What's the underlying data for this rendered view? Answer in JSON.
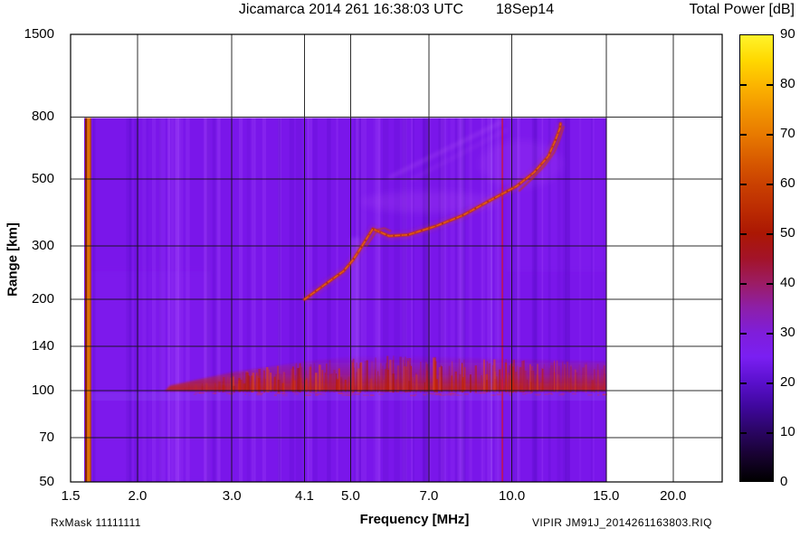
{
  "header": {
    "title": "Jicamarca 2014 261 16:38:03 UTC",
    "date": "18Sep14"
  },
  "footer": {
    "rx_mask": "RxMask 11111111",
    "file_id": "VIPIR  JM91J_2014261163803.RIQ"
  },
  "colors": {
    "background": "#7a16ea",
    "background_light": "#b45bff",
    "background_dark": "#4a07b5",
    "trace": "#c83708",
    "trace_core": "#ef6a12",
    "e_band": "#c42203",
    "calibration_stripe": "#de7502",
    "rfi_line": "#d11535",
    "grid": "#111111"
  },
  "chart_data": {
    "type": "heatmap",
    "title": "Jicamarca 2014 261 16:38:03 UTC  18Sep14",
    "xlabel": "Frequency [MHz]",
    "ylabel": "Range [km]",
    "colorbar_label": "Total Power [dB]",
    "x_scale": "log",
    "y_scale": "log",
    "grid": true,
    "x_ticks": [
      "1.5",
      "2.0",
      "3.0",
      "4.1",
      "5.0",
      "7.0",
      "10.0",
      "15.0",
      "20.0"
    ],
    "x_tick_values": [
      1.5,
      2.0,
      3.0,
      4.1,
      5.0,
      7.0,
      10.0,
      15.0,
      20.0
    ],
    "y_ticks": [
      50,
      70,
      100,
      140,
      200,
      300,
      500,
      800,
      1500
    ],
    "x_axis_range": [
      1.5,
      24.7
    ],
    "y_axis_range": [
      50,
      1500
    ],
    "colorbar": {
      "min": 0,
      "max": 90,
      "tick_step": 10,
      "labels": [
        0,
        10,
        20,
        30,
        40,
        50,
        60,
        70,
        80,
        90
      ],
      "stops": [
        [
          0,
          "#000000"
        ],
        [
          5,
          "#17022f"
        ],
        [
          10,
          "#2a0563"
        ],
        [
          15,
          "#3f079d"
        ],
        [
          20,
          "#5a10cd"
        ],
        [
          25,
          "#7a1ff2"
        ],
        [
          30,
          "#7f1eda"
        ],
        [
          35,
          "#8d1fa8"
        ],
        [
          40,
          "#9c1c64"
        ],
        [
          45,
          "#a31328"
        ],
        [
          50,
          "#ab1703"
        ],
        [
          55,
          "#bc2c02"
        ],
        [
          60,
          "#ca4101"
        ],
        [
          65,
          "#d95c00"
        ],
        [
          70,
          "#e87a00"
        ],
        [
          75,
          "#f29500"
        ],
        [
          80,
          "#fcb500"
        ],
        [
          85,
          "#ffd800"
        ],
        [
          90,
          "#fff32b"
        ]
      ]
    },
    "data_region": {
      "f_min": 1.59,
      "f_max": 15.05,
      "r_min": 50,
      "r_max": 795,
      "background_db": 25
    },
    "features": {
      "calibration_stripe_mhz": 1.61,
      "rfi_line_mhz": 9.6,
      "critical_frequency_mhz": 12.3,
      "e_region_band": {
        "f_start": 2.25,
        "f_end": 15.0,
        "r_bottom": 100,
        "peak_db": 47,
        "top_profile": [
          [
            2.3,
            104
          ],
          [
            3.0,
            115
          ],
          [
            4.0,
            124
          ],
          [
            5.0,
            130
          ],
          [
            6.0,
            131
          ],
          [
            8.0,
            129
          ],
          [
            10.0,
            127
          ],
          [
            15.0,
            125
          ]
        ]
      },
      "f_trace_o_mode": [
        [
          4.1,
          200
        ],
        [
          4.35,
          216
        ],
        [
          4.6,
          232
        ],
        [
          4.85,
          248
        ],
        [
          5.05,
          270
        ],
        [
          5.25,
          300
        ],
        [
          5.4,
          325
        ],
        [
          5.5,
          342
        ],
        [
          5.65,
          335
        ],
        [
          5.9,
          324
        ],
        [
          6.4,
          327
        ],
        [
          7.2,
          349
        ],
        [
          8.1,
          379
        ],
        [
          9.0,
          420
        ],
        [
          10.2,
          473
        ],
        [
          11.0,
          525
        ],
        [
          11.7,
          594
        ],
        [
          12.05,
          668
        ],
        [
          12.3,
          735
        ],
        [
          12.33,
          762
        ]
      ],
      "f_trace_x_mode": [
        [
          10.3,
          455
        ],
        [
          10.9,
          500
        ],
        [
          11.5,
          552
        ],
        [
          12.0,
          612
        ],
        [
          12.3,
          682
        ],
        [
          12.5,
          748
        ]
      ],
      "cusp_secondary": [
        [
          5.35,
          300
        ],
        [
          5.5,
          322
        ],
        [
          5.62,
          340
        ],
        [
          5.78,
          344
        ],
        [
          5.95,
          336
        ]
      ],
      "second_hop_streaks": [
        [
          [
            5.9,
            505
          ],
          [
            9.6,
            772
          ]
        ],
        [
          [
            6.5,
            498
          ],
          [
            9.8,
            728
          ]
        ]
      ],
      "light_column": {
        "f1": 5.0,
        "f2": 5.2,
        "r1": 103,
        "r2": 320
      }
    }
  }
}
